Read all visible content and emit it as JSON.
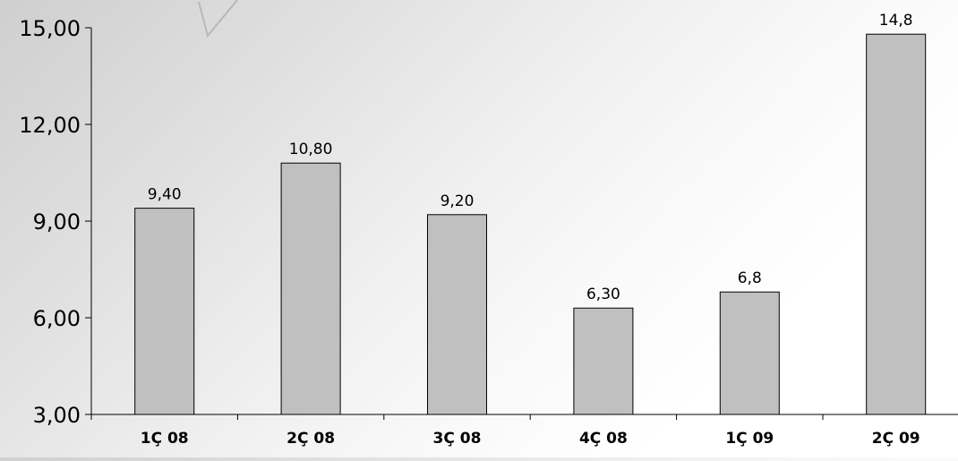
{
  "chart_data": {
    "type": "bar",
    "categories": [
      "1Ç 08",
      "2Ç 08",
      "3Ç 08",
      "4Ç 08",
      "1Ç 09",
      "2Ç 09"
    ],
    "values": [
      9.4,
      10.8,
      9.2,
      6.3,
      6.8,
      14.8
    ],
    "data_labels": [
      "9,40",
      "10,80",
      "9,20",
      "6,30",
      "6,8",
      "14,8"
    ],
    "y_tick_labels": [
      "3,00",
      "6,00",
      "9,00",
      "12,00",
      "15,00"
    ],
    "y_ticks": [
      3,
      6,
      9,
      12,
      15
    ],
    "ylim": [
      3,
      15
    ],
    "title": "",
    "xlabel": "",
    "ylabel": "",
    "grid": false,
    "legend": "none",
    "colors": {
      "bar_fill": "#c0c0c0",
      "bar_stroke": "#000000",
      "axis": "#000000"
    }
  }
}
